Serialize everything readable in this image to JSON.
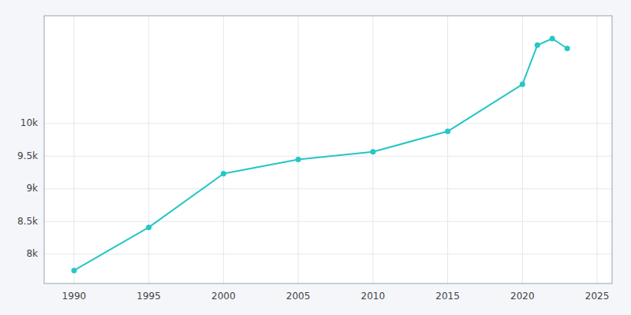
{
  "chart_data": {
    "type": "line",
    "x": [
      1990,
      1995,
      2000,
      2005,
      2010,
      2015,
      2020,
      2021,
      2022,
      2023
    ],
    "values": [
      7750,
      8410,
      9232,
      9450,
      9566,
      9880,
      10600,
      11200,
      11300,
      11150
    ],
    "color": "#26c6c6",
    "marker": "circle",
    "xlim": [
      1988,
      2026
    ],
    "ylim": [
      7550,
      11650
    ],
    "xticks": [
      1990,
      1995,
      2000,
      2005,
      2010,
      2015,
      2020,
      2025
    ],
    "yticks": [
      {
        "value": 8000,
        "label": "8k"
      },
      {
        "value": 8500,
        "label": "8.5k"
      },
      {
        "value": 9000,
        "label": "9k"
      },
      {
        "value": 9500,
        "label": "9.5k"
      },
      {
        "value": 10000,
        "label": "10k"
      }
    ],
    "grid": true
  }
}
